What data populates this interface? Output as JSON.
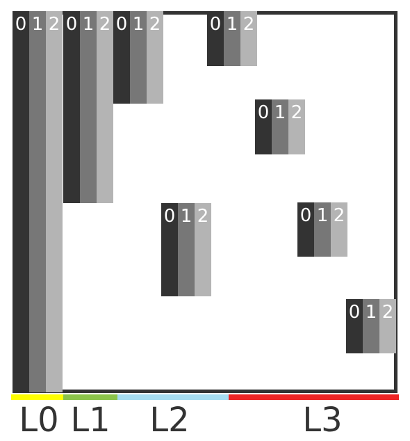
{
  "colors": {
    "stripe0": "#333333",
    "stripe1": "#777777",
    "stripe2": "#b4b4b4",
    "frame": "#333333",
    "L0": "#ffff00",
    "L1": "#8bc34a",
    "L2": "#a6dcf0",
    "L3": "#ef2424"
  },
  "stripe_labels": [
    "0",
    "1",
    "2"
  ],
  "levels": [
    {
      "label": "L0"
    },
    {
      "label": "L1"
    },
    {
      "label": "L2"
    },
    {
      "label": "L3"
    }
  ]
}
